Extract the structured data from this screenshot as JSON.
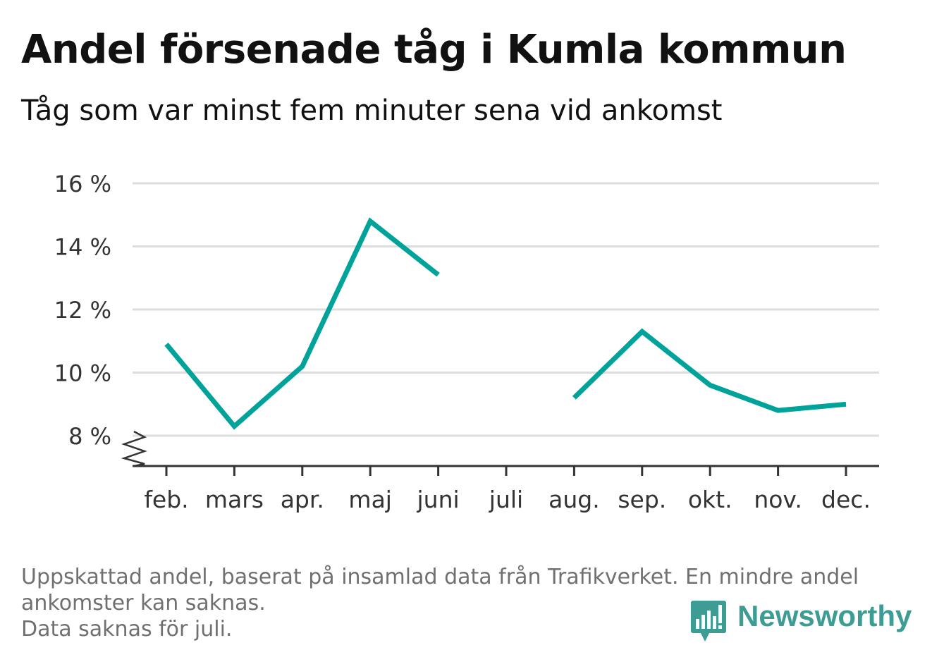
{
  "header": {
    "title": "Andel försenade tåg i Kumla kommun",
    "subtitle": "Tåg som var minst fem minuter sena vid ankomst"
  },
  "chart_data": {
    "type": "line",
    "categories": [
      "feb.",
      "mars",
      "apr.",
      "maj",
      "juni",
      "juli",
      "aug.",
      "sep.",
      "okt.",
      "nov.",
      "dec."
    ],
    "series": [
      {
        "values": [
          10.9,
          8.3,
          10.2,
          14.8,
          13.1,
          null,
          9.2,
          11.3,
          9.6,
          8.8,
          9.0
        ]
      }
    ],
    "y_ticks": [
      8,
      10,
      12,
      14,
      16
    ],
    "y_tick_suffix": " %",
    "ylim": [
      7.2,
      16
    ],
    "axis_break": true,
    "grid": true,
    "line_color": "#00a39a",
    "grid_color": "#dddddd",
    "axis_color": "#333333"
  },
  "footnote": {
    "line1": "Uppskattad andel, baserat på insamlad data från Trafikverket. En mindre andel",
    "line2": "ankomster kan saknas.",
    "line3": "Data saknas för juli."
  },
  "brand": {
    "name": "Newsworthy",
    "logo_icon": "bar-chart-speech-bubble-icon",
    "color": "#3d9c93"
  }
}
